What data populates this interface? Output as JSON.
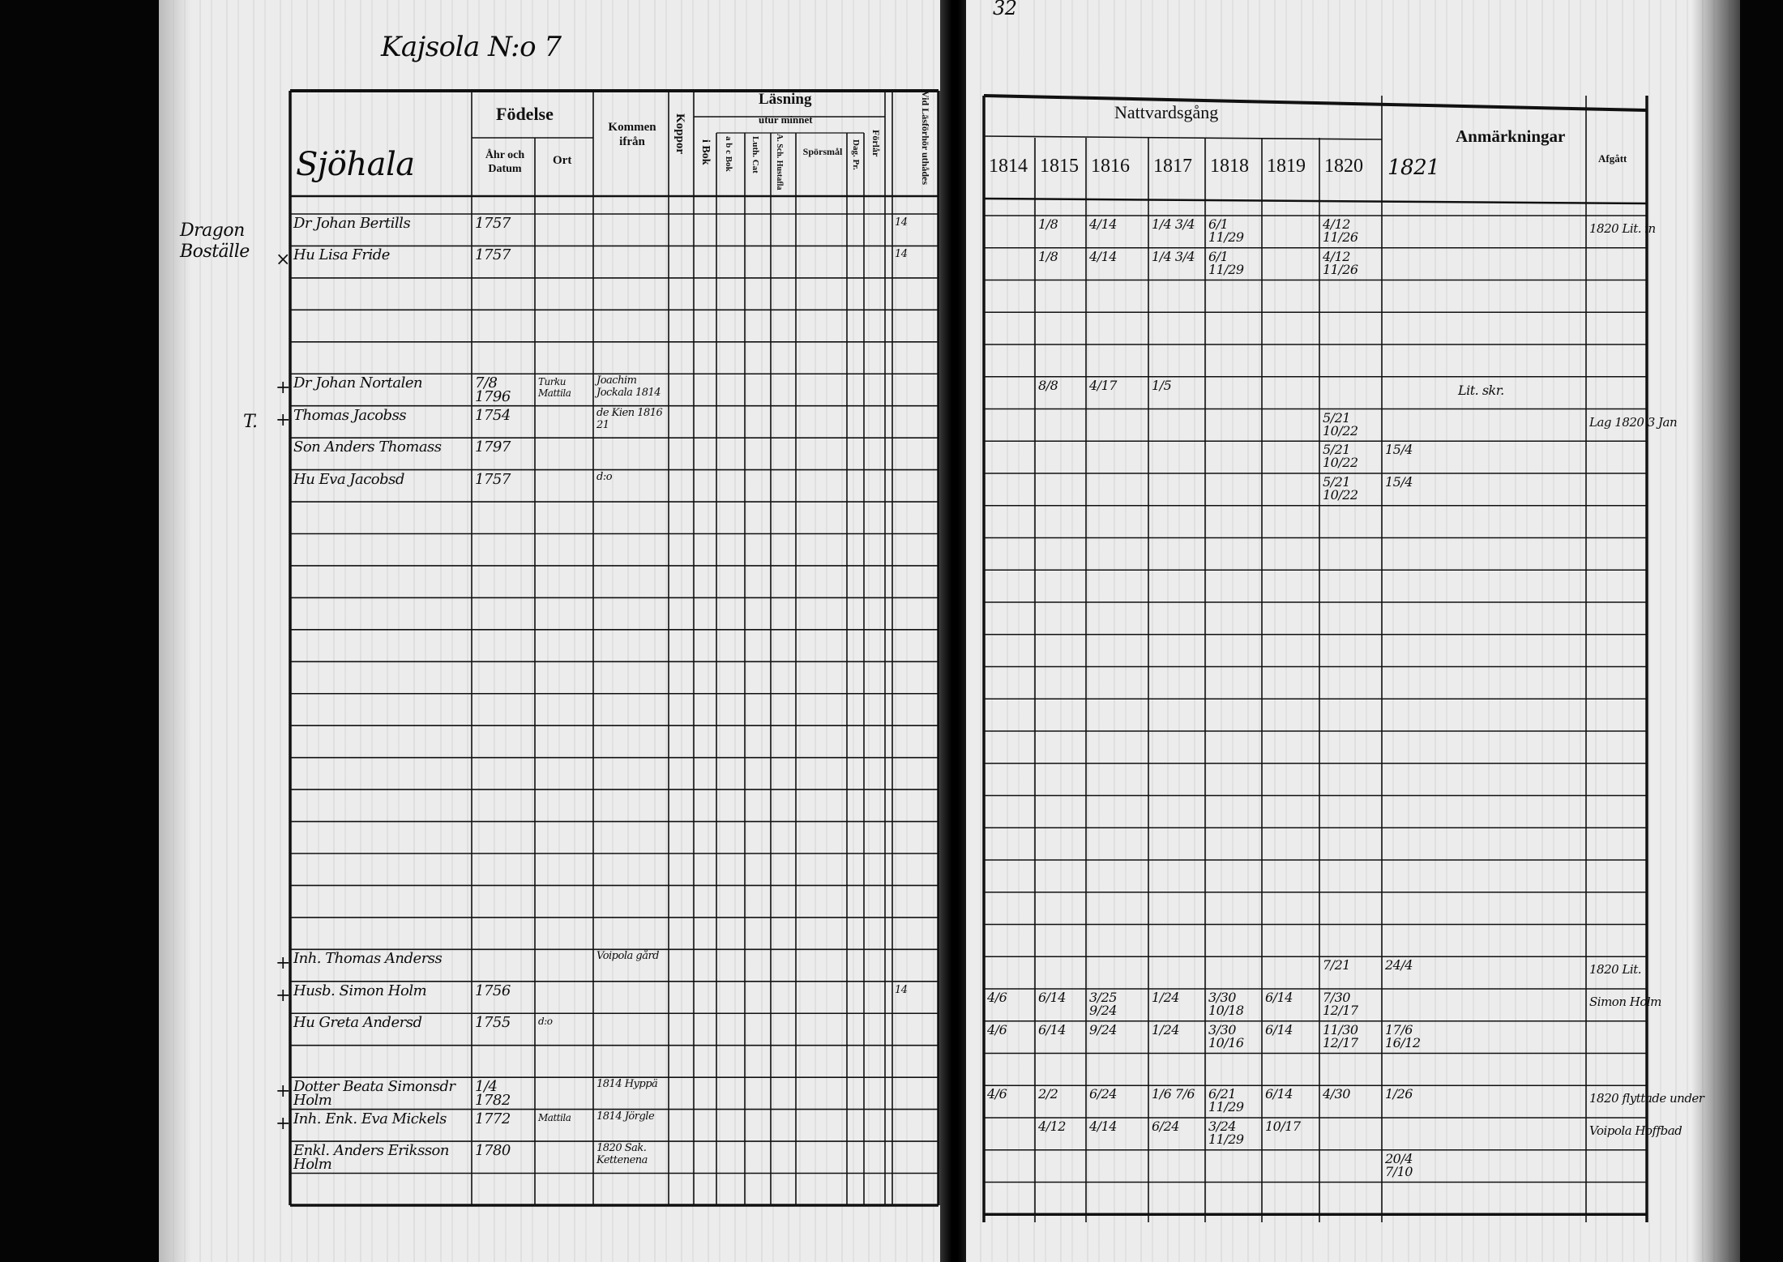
{
  "document": {
    "title_handwritten": "Kajsola N:o 7",
    "page_number": "32"
  },
  "left_table": {
    "headers": {
      "name": "Sjöhala",
      "fodelse": "Födelse",
      "ar_och_datum": "Åhr och Datum",
      "ort": "Ort",
      "kommen_ifran": "Kommen ifrån",
      "koppor": "Koppor",
      "lasning": "Läsning",
      "utur_minnet": "utur minnet",
      "i_bok": "i Bok",
      "abc_bok": "a b c Bok",
      "luth_cat": "Luth. Cat",
      "hustafla": "A. Sch. Hustafla",
      "sporsmal": "Spörsmål",
      "dag_pr": "Dag. Pr.",
      "forlar": "Förlår",
      "las_forhor": "Vid Läsförhör uthådes"
    },
    "margin_notes": [
      "Dragon Boställe",
      "T."
    ],
    "rows": [
      {
        "mark": "",
        "name": "Dr Johan Bertills",
        "born": "1757",
        "ort": "",
        "kommen": "",
        "lasforhor": "14"
      },
      {
        "mark": "×",
        "name": "Hu Lisa Fride",
        "born": "1757",
        "ort": "",
        "kommen": "",
        "lasforhor": "14"
      },
      {
        "mark": "+",
        "name": "Dr Johan Nortalen",
        "born": "7/8 1796",
        "ort": "Turku Mattila",
        "kommen": "Joachim Jockala 1814",
        "lasforhor": ""
      },
      {
        "mark": "+",
        "name": "Thomas Jacobss",
        "born": "1754",
        "ort": "",
        "kommen": "de Kien 1816 21",
        "lasforhor": ""
      },
      {
        "mark": "",
        "name": "Son Anders Thomass",
        "born": "1797",
        "ort": "",
        "kommen": "",
        "lasforhor": ""
      },
      {
        "mark": "",
        "name": "Hu Eva Jacobsd",
        "born": "1757",
        "ort": "",
        "kommen": "d:o",
        "lasforhor": ""
      },
      {
        "mark": "+",
        "name": "Inh. Thomas Anderss",
        "born": "",
        "ort": "",
        "kommen": "Voipola gård",
        "lasforhor": ""
      },
      {
        "mark": "+",
        "name": "Husb. Simon Holm",
        "born": "1756",
        "ort": "",
        "kommen": "",
        "lasforhor": "14"
      },
      {
        "mark": "",
        "name": "Hu Greta Andersd",
        "born": "1755",
        "ort": "d:o",
        "kommen": "",
        "lasforhor": ""
      },
      {
        "mark": "+",
        "name": "Dotter Beata Simonsdr Holm",
        "born": "1/4 1782",
        "ort": "",
        "kommen": "1814 Hyppä",
        "lasforhor": ""
      },
      {
        "mark": "+",
        "name": "Inh. Enk. Eva Mickels",
        "born": "1772",
        "ort": "Mattila",
        "kommen": "1814 Jörgle",
        "lasforhor": ""
      },
      {
        "mark": "",
        "name": "Enkl. Anders Eriksson Holm",
        "born": "1780",
        "ort": "",
        "kommen": "1820 Sak. Kettenena",
        "lasforhor": ""
      }
    ]
  },
  "right_table": {
    "headers": {
      "nattvardsgang": "Nattvardsgång",
      "years": [
        "1814",
        "1815",
        "1816",
        "1817",
        "1818",
        "1819",
        "1820"
      ],
      "year_1821": "1821",
      "anmarkningar": "Anmärkningar",
      "afgatt": "Afgått"
    },
    "rows": [
      {
        "1815": "1/8",
        "1816": "4/14",
        "1817": "1/4 3/4",
        "1818": "6/1 11/29",
        "1820": "4/12 11/26",
        "afgatt": "1820 Lit. in"
      },
      {
        "1815": "1/8",
        "1816": "4/14",
        "1817": "1/4 3/4",
        "1818": "6/1 11/29",
        "1820": "4/12 11/26"
      },
      {
        "1815": "8/8",
        "1816": "4/17",
        "1817": "1/5",
        "anm": "Lit. skr."
      },
      {
        "1820": "5/21 10/22",
        "afgatt": "Lag 1820 3 Jan"
      },
      {
        "1820": "5/21 10/22",
        "1821": "15/4"
      },
      {
        "1820": "5/21 10/22",
        "1821": "15/4"
      },
      {
        "1820": "7/21",
        "1821": "24/4",
        "afgatt": "1820 Lit."
      },
      {
        "1814": "4/6",
        "1815": "6/14",
        "1816": "3/25 9/24",
        "1817": "1/24",
        "1818": "3/30 10/18",
        "1819": "6/14",
        "1820": "7/30 12/17",
        "afgatt": "Simon Holm"
      },
      {
        "1814": "4/6",
        "1815": "6/14",
        "1816": "9/24",
        "1817": "1/24",
        "1818": "3/30 10/16",
        "1819": "6/14",
        "1820": "11/30 12/17",
        "1821": "17/6 16/12"
      },
      {
        "1814": "4/6",
        "1815": "2/2",
        "1816": "6/24",
        "1817": "1/6 7/6",
        "1818": "6/21 11/29",
        "1819": "6/14",
        "1820": "4/30",
        "1821": "1/26",
        "afgatt": "1820 flyttade under"
      },
      {
        "1815": "4/12",
        "1816": "4/14",
        "1817": "6/24",
        "1818": "3/24 11/29",
        "1819": "10/17",
        "afgatt": "Voipola Hoffbad"
      },
      {
        "1821": "20/4 7/10"
      }
    ]
  }
}
